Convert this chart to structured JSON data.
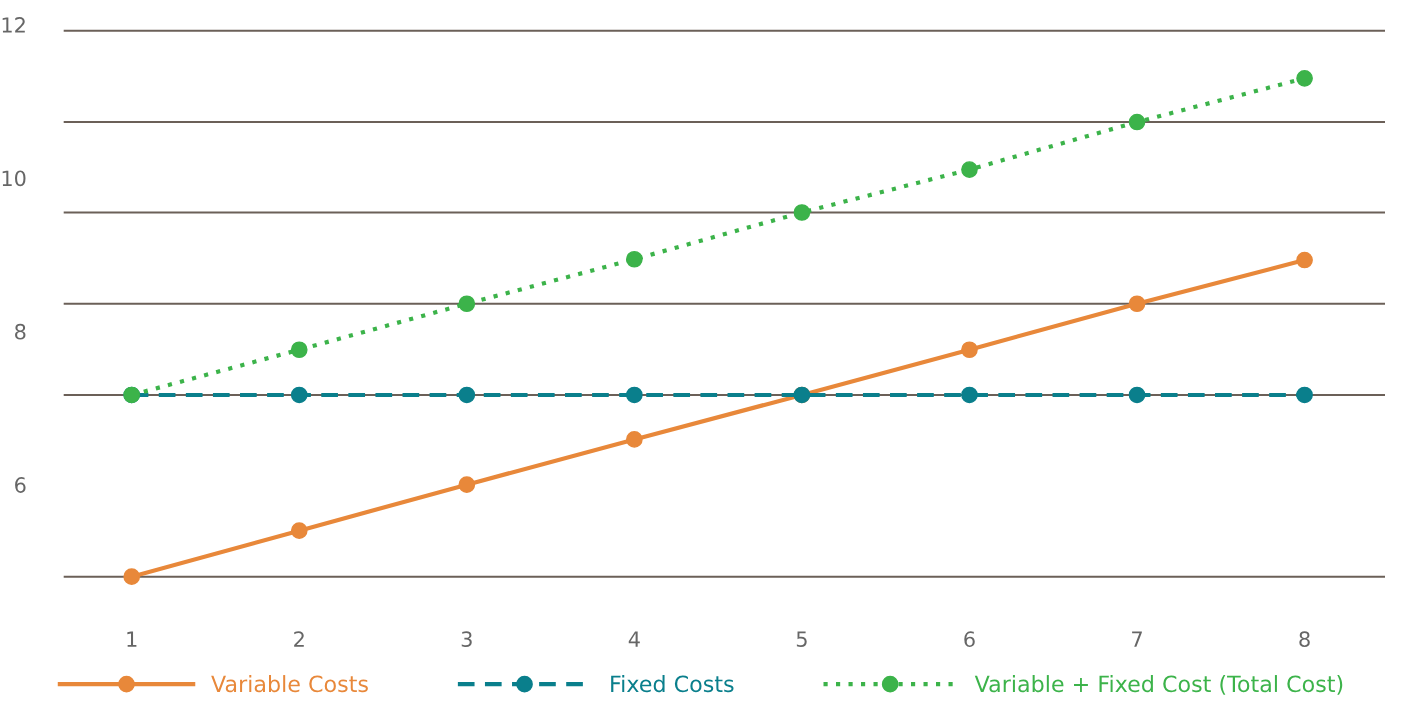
{
  "chart_data": {
    "type": "line",
    "categories": [
      "1",
      "2",
      "3",
      "4",
      "5",
      "6",
      "7",
      "8"
    ],
    "series": [
      {
        "name": "Variable Costs",
        "color": "#e8883a",
        "line_style": "solid",
        "values": [
          4.8,
          5.4,
          6.0,
          6.59,
          7.17,
          7.76,
          8.36,
          8.93
        ]
      },
      {
        "name": "Fixed Costs",
        "color": "#0a7f8c",
        "line_style": "dashed",
        "values": [
          7.17,
          7.17,
          7.17,
          7.17,
          7.17,
          7.17,
          7.17,
          7.17
        ]
      },
      {
        "name": "Variable + Fixed Cost (Total Cost)",
        "color": "#3cb34a",
        "line_style": "dotted",
        "values": [
          7.17,
          7.76,
          8.36,
          8.94,
          9.55,
          10.11,
          10.73,
          11.3
        ]
      }
    ],
    "marker": "circle",
    "ylim": [
      4.6,
      12.1
    ],
    "yticks": [
      6,
      8,
      10,
      12,
      {
        "value": 4.8,
        "label": null
      },
      {
        "value": 7.17,
        "label": null
      },
      {
        "value": 8.36,
        "label": null
      },
      {
        "value": 9.55,
        "label": null
      },
      {
        "value": 10.73,
        "label": null
      },
      {
        "value": 11.92,
        "label": null
      }
    ],
    "grid": "y",
    "legend": "bottom"
  }
}
